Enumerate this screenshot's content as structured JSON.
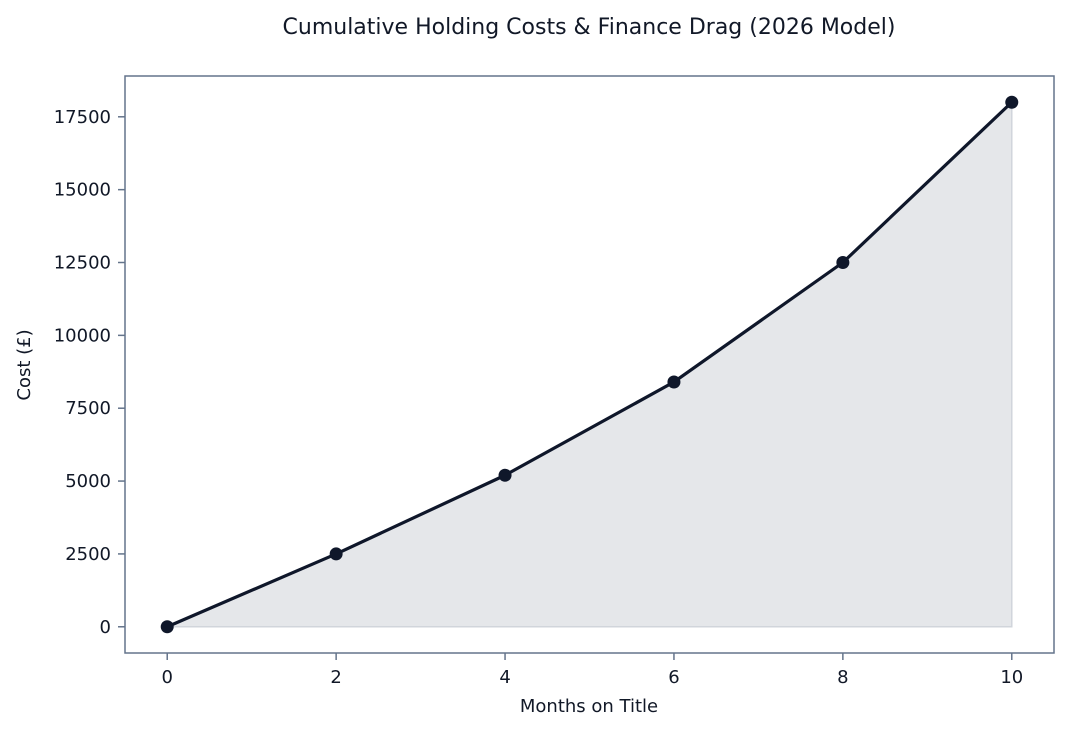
{
  "chart_data": {
    "type": "area",
    "title": "Cumulative Holding Costs & Finance Drag (2026 Model)",
    "xlabel": "Months on Title",
    "ylabel": "Cost (£)",
    "x": [
      0,
      2,
      4,
      6,
      8,
      10
    ],
    "series": [
      {
        "values": [
          0,
          2500,
          5200,
          8400,
          12500,
          18000
        ]
      }
    ],
    "xlim": [
      -0.5,
      10.5
    ],
    "ylim": [
      -900,
      18900
    ],
    "xticks": [
      0,
      2,
      4,
      6,
      8,
      10
    ],
    "yticks": [
      0,
      2500,
      5000,
      7500,
      10000,
      12500,
      15000,
      17500
    ],
    "xtick_labels": [
      "0",
      "2",
      "4",
      "6",
      "8",
      "10"
    ],
    "ytick_labels": [
      "0",
      "2500",
      "5000",
      "7500",
      "10000",
      "12500",
      "15000",
      "17500"
    ],
    "grid": false,
    "legend": "none",
    "colors": {
      "line": "#0f172a",
      "fill": "#e5e7ea",
      "frame": "#64748b",
      "text": "#111827"
    }
  }
}
